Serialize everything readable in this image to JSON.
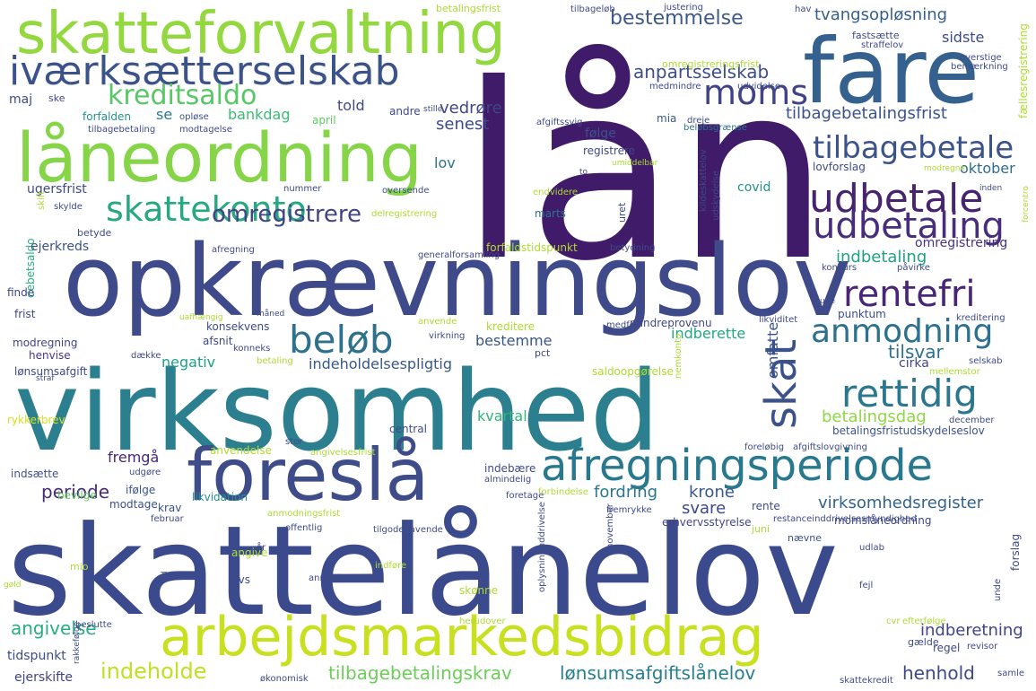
{
  "words": [
    {
      "text": "lån",
      "color": "#3f1b69"
    },
    {
      "text": "skattelånelov",
      "color": "#3b4a8c"
    },
    {
      "text": "virksomhed",
      "color": "#2c7f8e"
    },
    {
      "text": "opkrævningslov",
      "color": "#3e4a89"
    },
    {
      "text": "fare",
      "color": "#34618d"
    },
    {
      "text": "skatteforvaltning",
      "color": "#94d840"
    },
    {
      "text": "låneordning",
      "color": "#86d549"
    },
    {
      "text": "foreslå",
      "color": "#3e4c8a"
    },
    {
      "text": "arbejdsmarkedsbidrag",
      "color": "#c8e020"
    },
    {
      "text": "afregningsperiode",
      "color": "#2a788e"
    },
    {
      "text": "iværksætterselskab",
      "color": "#3b528b"
    },
    {
      "text": "skattekonto",
      "color": "#27a882"
    },
    {
      "text": "beløb",
      "color": "#2d718e"
    },
    {
      "text": "moms",
      "color": "#404387"
    },
    {
      "text": "kreditsaldo",
      "color": "#58c765"
    },
    {
      "text": "udbetale",
      "color": "#46246f"
    },
    {
      "text": "udbetaling",
      "color": "#472d7b"
    },
    {
      "text": "tilbagebetale",
      "color": "#3b528b"
    },
    {
      "text": "skat",
      "color": "#3b528b"
    },
    {
      "text": "anmodning",
      "color": "#2c718e"
    },
    {
      "text": "rentefri",
      "color": "#482576"
    },
    {
      "text": "rettidig",
      "color": "#2a778e"
    },
    {
      "text": "omregistrere",
      "color": "#414487"
    },
    {
      "text": "bestemmelse",
      "color": "#3e598b"
    },
    {
      "text": "tvangsopløsning",
      "color": "#355f8d"
    },
    {
      "text": "anpartsselskab",
      "color": "#3d4e8a"
    },
    {
      "text": "indeholde",
      "color": "#c2df23"
    },
    {
      "text": "tilbagebetalingskrav",
      "color": "#6ccd5a"
    },
    {
      "text": "lønsumsafgiftslånelov",
      "color": "#277f8e"
    },
    {
      "text": "angivelse",
      "color": "#27ad81"
    },
    {
      "text": "henhold",
      "color": "#3e4989"
    },
    {
      "text": "indberetning",
      "color": "#414487"
    },
    {
      "text": "virksomhedsregister",
      "color": "#33638d"
    },
    {
      "text": "fordring",
      "color": "#2a768e"
    },
    {
      "text": "periode",
      "color": "#482878"
    },
    {
      "text": "svare",
      "color": "#3f4889"
    },
    {
      "text": "krone",
      "color": "#38598c"
    },
    {
      "text": "betalingsdag",
      "color": "#8fd744"
    },
    {
      "text": "tilbagebetalingsfrist",
      "color": "#3b528b"
    },
    {
      "text": "indberette",
      "color": "#22a884"
    },
    {
      "text": "tilsvar",
      "color": "#2c728e"
    },
    {
      "text": "indbetaling",
      "color": "#20a386"
    },
    {
      "text": "oktober",
      "color": "#2f6c8e"
    },
    {
      "text": "senest",
      "color": "#3e4989"
    },
    {
      "text": "vedrøre",
      "color": "#414487"
    },
    {
      "text": "omfatte",
      "color": "#3b528b"
    },
    {
      "text": "bestemme",
      "color": "#39558c"
    },
    {
      "text": "indeholdelsespligtig",
      "color": "#38588c"
    },
    {
      "text": "negativ",
      "color": "#1fa088"
    },
    {
      "text": "told",
      "color": "#3e4a89"
    },
    {
      "text": "se",
      "color": "#2a788e"
    },
    {
      "text": "bankdag",
      "color": "#3bbb75"
    },
    {
      "text": "sidste",
      "color": "#3e4a89"
    },
    {
      "text": "fremgå",
      "color": "#482576"
    },
    {
      "text": "kvartal",
      "color": "#2fb47c"
    },
    {
      "text": "lov",
      "color": "#2c738e"
    },
    {
      "text": "følge",
      "color": "#3b528b"
    },
    {
      "text": "registrere",
      "color": "#3f4788"
    },
    {
      "text": "covid",
      "color": "#21918c"
    },
    {
      "text": "cirka",
      "color": "#414487"
    },
    {
      "text": "omregistrering",
      "color": "#46337f"
    },
    {
      "text": "lovforslag",
      "color": "#3e4a89"
    },
    {
      "text": "ugersfrist",
      "color": "#3f4889"
    },
    {
      "text": "debetsaldo",
      "color": "#27ad81"
    },
    {
      "text": "ejerkreds",
      "color": "#3b528b"
    },
    {
      "text": "modregning",
      "color": "#404387"
    },
    {
      "text": "lønsumsafgift",
      "color": "#3e4a89"
    },
    {
      "text": "henvise",
      "color": "#443983"
    },
    {
      "text": "afsnit",
      "color": "#3e4989"
    },
    {
      "text": "konsekvens",
      "color": "#3e4989"
    },
    {
      "text": "frist",
      "color": "#414487"
    },
    {
      "text": "finde",
      "color": "#3f4788"
    },
    {
      "text": "maj",
      "color": "#3e4c8a"
    },
    {
      "text": "ske",
      "color": "#414487"
    },
    {
      "text": "forfalden",
      "color": "#21918c"
    },
    {
      "text": "opløse",
      "color": "#3b528b"
    },
    {
      "text": "april",
      "color": "#5ec962"
    },
    {
      "text": "mia",
      "color": "#38598c"
    },
    {
      "text": "beløbsgrænse",
      "color": "#2c728e"
    },
    {
      "text": "ifølge",
      "color": "#3b528b"
    },
    {
      "text": "krav",
      "color": "#3b528b"
    },
    {
      "text": "likvidation",
      "color": "#21918c"
    },
    {
      "text": "bevilge",
      "color": "#5ec962"
    },
    {
      "text": "modtage",
      "color": "#3b528b"
    },
    {
      "text": "indsætte",
      "color": "#3b528b"
    },
    {
      "text": "rykkerbrev",
      "color": "#d8e219"
    },
    {
      "text": "periode_small",
      "color": "#482878"
    },
    {
      "text": "erhvervsstyrelse",
      "color": "#414487"
    },
    {
      "text": "rente",
      "color": "#3e4a89"
    },
    {
      "text": "momslåneordning",
      "color": "#3e4989"
    },
    {
      "text": "nævne",
      "color": "#3b528b"
    },
    {
      "text": "angive",
      "color": "#addc30"
    },
    {
      "text": "dvs",
      "color": "#3e4a89"
    },
    {
      "text": "skønne",
      "color": "#addc30"
    },
    {
      "text": "regel",
      "color": "#3e4a89"
    },
    {
      "text": "gælde",
      "color": "#3e4a89"
    },
    {
      "text": "tidspunkt",
      "color": "#3e4a89"
    },
    {
      "text": "ejerskifte",
      "color": "#414487"
    },
    {
      "text": "mio",
      "color": "#addc30"
    },
    {
      "text": "juni",
      "color": "#addc30"
    },
    {
      "text": "punktum",
      "color": "#3e4a89"
    },
    {
      "text": "kreditere",
      "color": "#addc30"
    },
    {
      "text": "mindreprovenu",
      "color": "#3e4989"
    },
    {
      "text": "saldoopgørelse",
      "color": "#addc30"
    },
    {
      "text": "betalingsfristudskydelseslov",
      "color": "#3b528b"
    },
    {
      "text": "central",
      "color": "#3e4a89"
    },
    {
      "text": "pct",
      "color": "#3e4a89"
    },
    {
      "text": "marts",
      "color": "#2c728e"
    },
    {
      "text": "forfaldstidspunkt",
      "color": "#addc30"
    },
    {
      "text": "uret",
      "color": "#3e4a89"
    },
    {
      "text": "indebære",
      "color": "#3e4a89"
    },
    {
      "text": "anvendelse",
      "color": "#addc30"
    },
    {
      "text": "forslag",
      "color": "#3e4a89"
    },
    {
      "text": "fastsætte",
      "color": "#3e4a89"
    },
    {
      "text": "justering",
      "color": "#3e4a89"
    },
    {
      "text": "betalingsfrist",
      "color": "#addc30"
    },
    {
      "text": "medmindre",
      "color": "#3e4a89"
    },
    {
      "text": "udvidelse",
      "color": "#3e4a89"
    },
    {
      "text": "omregistreringsfrist",
      "color": "#addc30"
    },
    {
      "text": "tilbagebetaling",
      "color": "#3e4a89"
    },
    {
      "text": "modtagelse",
      "color": "#3e4a89"
    },
    {
      "text": "afgiftssvig",
      "color": "#3e4a89"
    },
    {
      "text": "dreje",
      "color": "#3e4a89"
    },
    {
      "text": "nummer",
      "color": "#3e4a89"
    },
    {
      "text": "oversende",
      "color": "#3e4a89"
    },
    {
      "text": "endvidere",
      "color": "#addc30"
    },
    {
      "text": "skylde",
      "color": "#3e4a89"
    },
    {
      "text": "delregistrering",
      "color": "#addc30"
    },
    {
      "text": "betyde",
      "color": "#3e4a89"
    },
    {
      "text": "generalforsamling",
      "color": "#3e4a89"
    },
    {
      "text": "afregning",
      "color": "#3e4a89"
    },
    {
      "text": "betydning",
      "color": "#3e4a89"
    },
    {
      "text": "påvirke",
      "color": "#3e4a89"
    },
    {
      "text": "konkurs",
      "color": "#3e4a89"
    },
    {
      "text": "kreditering",
      "color": "#3e4a89"
    },
    {
      "text": "likviditet",
      "color": "#3e4a89"
    },
    {
      "text": "medfør",
      "color": "#3e4a89"
    },
    {
      "text": "anvende",
      "color": "#addc30"
    },
    {
      "text": "virkning",
      "color": "#3e4a89"
    },
    {
      "text": "konneks",
      "color": "#3e4a89"
    },
    {
      "text": "dække",
      "color": "#3e4a89"
    },
    {
      "text": "betaling",
      "color": "#addc30"
    },
    {
      "text": "selskab",
      "color": "#3e4a89"
    },
    {
      "text": "mellemstor",
      "color": "#addc30"
    },
    {
      "text": "december",
      "color": "#3e4a89"
    },
    {
      "text": "foreløbig",
      "color": "#3e4a89"
    },
    {
      "text": "afgiftslovgivning",
      "color": "#3e4a89"
    },
    {
      "text": "angivelsesfrist",
      "color": "#addc30"
    },
    {
      "text": "stor",
      "color": "#3e4a89"
    },
    {
      "text": "udgøre",
      "color": "#3e4a89"
    },
    {
      "text": "almindelig",
      "color": "#3e4a89"
    },
    {
      "text": "februar",
      "color": "#3e4a89"
    },
    {
      "text": "foretage",
      "color": "#3e4a89"
    },
    {
      "text": "forbindelse",
      "color": "#addc30"
    },
    {
      "text": "fremrykke",
      "color": "#3e4a89"
    },
    {
      "text": "restanceinddrivelsesmyndighed",
      "color": "#3e4a89"
    },
    {
      "text": "anmodningsfrist",
      "color": "#addc30"
    },
    {
      "text": "offentlig",
      "color": "#3e4a89"
    },
    {
      "text": "tilgodehavende",
      "color": "#3e4a89"
    },
    {
      "text": "november",
      "color": "#3e4a89"
    },
    {
      "text": "inddrivelse",
      "color": "#3e4a89"
    },
    {
      "text": "år",
      "color": "#3e4a89"
    },
    {
      "text": "udlab",
      "color": "#3e4a89"
    },
    {
      "text": "anmode",
      "color": "#3e4a89"
    },
    {
      "text": "indføre",
      "color": "#addc30"
    },
    {
      "text": "oplysning",
      "color": "#3e4a89"
    },
    {
      "text": "fejl",
      "color": "#3e4a89"
    },
    {
      "text": "unde",
      "color": "#3e4a89"
    },
    {
      "text": "herudover",
      "color": "#addc30"
    },
    {
      "text": "beslutte",
      "color": "#3e4a89"
    },
    {
      "text": "rakkefølge",
      "color": "#3e4a89"
    },
    {
      "text": "efterfølge",
      "color": "#addc30"
    },
    {
      "text": "revisor",
      "color": "#3e4a89"
    },
    {
      "text": "cvr",
      "color": "#addc30"
    },
    {
      "text": "samle",
      "color": "#3e4a89"
    },
    {
      "text": "økonomisk",
      "color": "#3e4a89"
    },
    {
      "text": "skattekredit",
      "color": "#3e4a89"
    },
    {
      "text": "hav",
      "color": "#3e4a89"
    },
    {
      "text": "tilbageløb",
      "color": "#3e4a89"
    },
    {
      "text": "straffelov",
      "color": "#3e4a89"
    },
    {
      "text": "fællesregistrering",
      "color": "#addc30"
    },
    {
      "text": "overstige",
      "color": "#3e4a89"
    },
    {
      "text": "bemærkning",
      "color": "#3e4a89"
    },
    {
      "text": "stille",
      "color": "#3e4a89"
    },
    {
      "text": "andre",
      "color": "#3e4a89"
    },
    {
      "text": "kildeskattelov",
      "color": "#3e4a89"
    },
    {
      "text": "umiddelbar",
      "color": "#addc30"
    },
    {
      "text": "udskydelse",
      "color": "#3e4a89"
    },
    {
      "text": "modregne",
      "color": "#addc30"
    },
    {
      "text": "inden",
      "color": "#3e4a89"
    },
    {
      "text": "forcentro",
      "color": "#addc30"
    },
    {
      "text": "uge",
      "color": "#3e4a89"
    },
    {
      "text": "måned",
      "color": "#3e4a89"
    },
    {
      "text": "uafhængig",
      "color": "#addc30"
    },
    {
      "text": "straf",
      "color": "#3e4a89"
    },
    {
      "text": "vid",
      "color": "#3e4a89"
    },
    {
      "text": "gøld",
      "color": "#addc30"
    },
    {
      "text": "skift",
      "color": "#addc30"
    },
    {
      "text": "to",
      "color": "#3e4a89"
    },
    {
      "text": "nemkonto",
      "color": "#addc30"
    }
  ]
}
